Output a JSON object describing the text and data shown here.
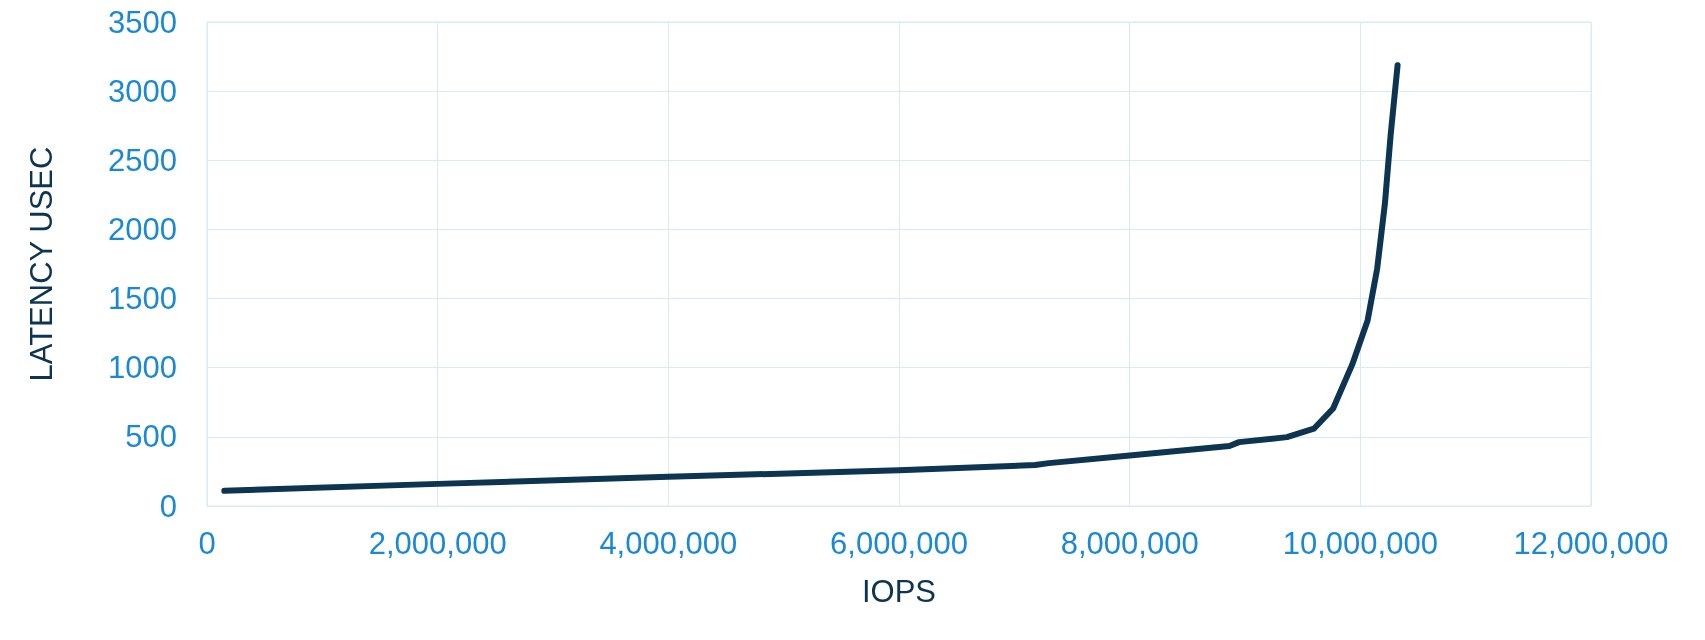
{
  "chart_data": {
    "type": "line",
    "xlabel": "IOPS",
    "ylabel": "LATENCY USEC",
    "x": [
      150000,
      2000000,
      4000000,
      6000000,
      7180000,
      7300000,
      8000000,
      8865000,
      8948000,
      9364000,
      9597000,
      9764000,
      9930000,
      10063000,
      10146000,
      10213000,
      10263000,
      10323000
    ],
    "series": [
      {
        "color": "#0d3450",
        "values": [
          110,
          160,
          211,
          259,
          296,
          310,
          365,
          434,
          462,
          498,
          559,
          705,
          1024,
          1342,
          1716,
          2186,
          2684,
          3187
        ]
      }
    ],
    "xlim": [
      0,
      12000000
    ],
    "xticks": [
      0,
      {
        "value": 2000000,
        "label": "2,000,000"
      },
      {
        "value": 4000000,
        "label": "4,000,000"
      },
      {
        "value": 6000000,
        "label": "6,000,000"
      },
      {
        "value": 8000000,
        "label": "8,000,000"
      },
      {
        "value": 10000000,
        "label": "10,000,000"
      },
      {
        "value": 12000000,
        "label": "12,000,000"
      }
    ],
    "ylim": [
      0,
      3500
    ],
    "yticks": [
      0,
      500,
      1000,
      1500,
      2000,
      2500,
      3000,
      3500
    ],
    "grid": true,
    "marker": "none",
    "line_style": "solid"
  }
}
